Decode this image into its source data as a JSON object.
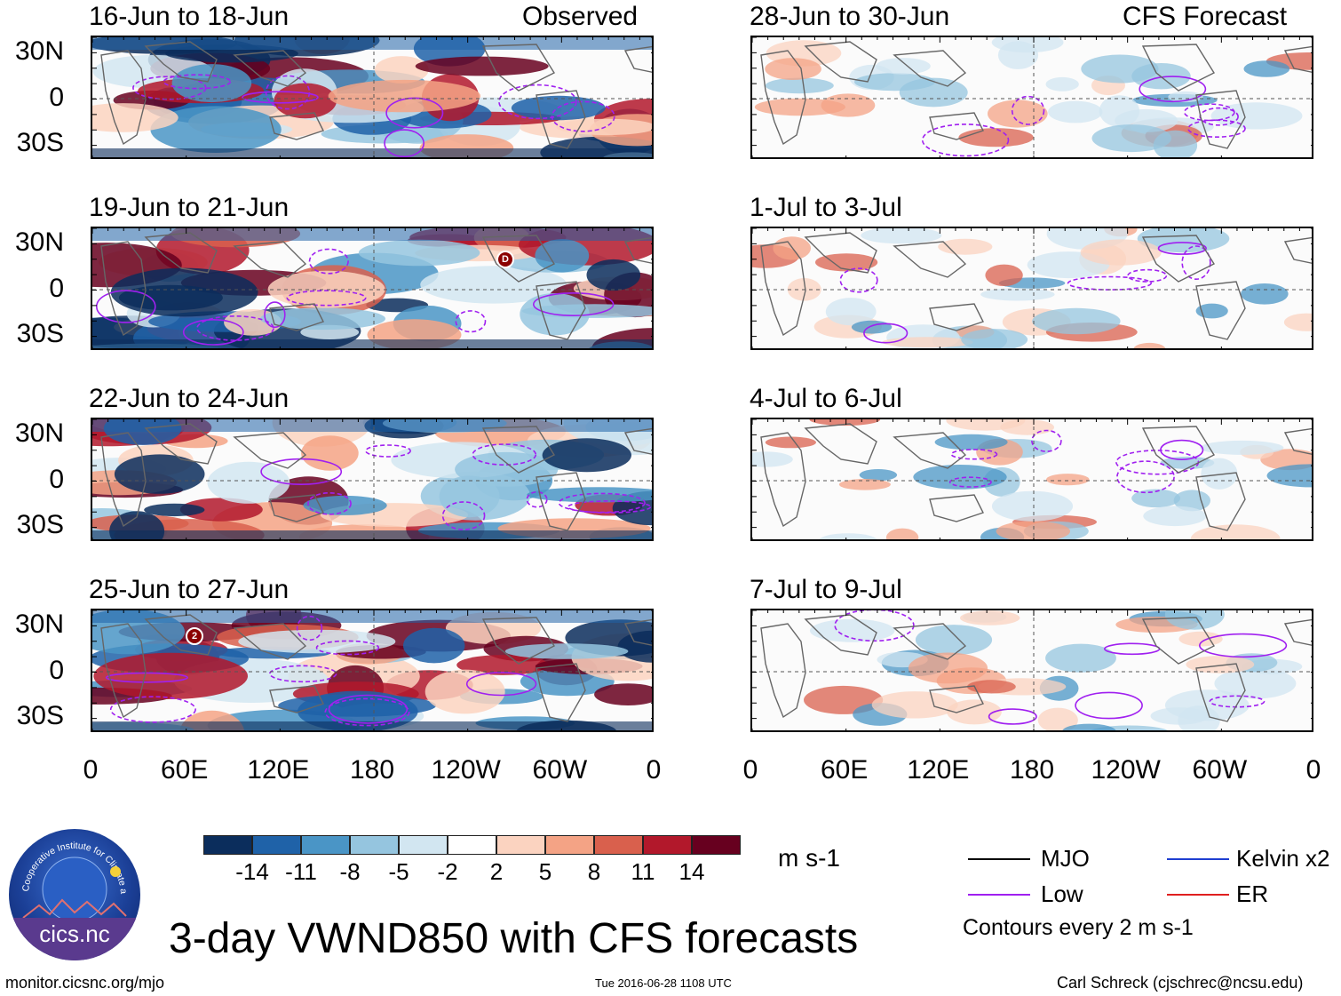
{
  "title": "3-day VWND850 with CFS forecasts",
  "observed_label": "Observed",
  "forecast_label": "CFS Forecast",
  "panels_observed": [
    {
      "title": "16-Jun to 18-Jun"
    },
    {
      "title": "19-Jun to 21-Jun"
    },
    {
      "title": "22-Jun to 24-Jun"
    },
    {
      "title": "25-Jun to 27-Jun"
    }
  ],
  "panels_forecast": [
    {
      "title": "28-Jun to 30-Jun"
    },
    {
      "title": "1-Jul to 3-Jul"
    },
    {
      "title": "4-Jul to 6-Jul"
    },
    {
      "title": "7-Jul to 9-Jul"
    }
  ],
  "lat_labels": [
    "30N",
    "0",
    "30S"
  ],
  "lon_labels": [
    "0",
    "60E",
    "120E",
    "180",
    "120W",
    "60W",
    "0"
  ],
  "colorbar": {
    "units": "m s-1",
    "ticks": [
      "-14",
      "-11",
      "-8",
      "-5",
      "-2",
      "2",
      "5",
      "8",
      "11",
      "14"
    ],
    "colors": [
      "#0b2d5c",
      "#1f62a8",
      "#4a95c6",
      "#95c5df",
      "#d2e6f1",
      "#ffffff",
      "#fbd3c0",
      "#f4a385",
      "#d9604d",
      "#b2182b",
      "#67001f"
    ]
  },
  "legend": {
    "mjo": "MJO",
    "low": "Low",
    "kelvin": "Kelvin x2",
    "er": "ER",
    "contours": "Contours every 2 m s-1",
    "colors": {
      "mjo": "#000000",
      "low": "#a020f0",
      "kelvin": "#1f3fd1",
      "er": "#e02020"
    }
  },
  "footer": {
    "left": "monitor.cicsnc.org/mjo",
    "center": "Tue 2016-06-28 1108 UTC",
    "right": "Carl Schreck (cjschrec@ncsu.edu)"
  },
  "logo": {
    "ring_text": "Cooperative Institute for Climate and Satellites",
    "name": "cics.nc"
  },
  "storm_markers": [
    {
      "panel": "obs-2",
      "label": "D"
    },
    {
      "panel": "obs-4",
      "label": "2"
    }
  ]
}
